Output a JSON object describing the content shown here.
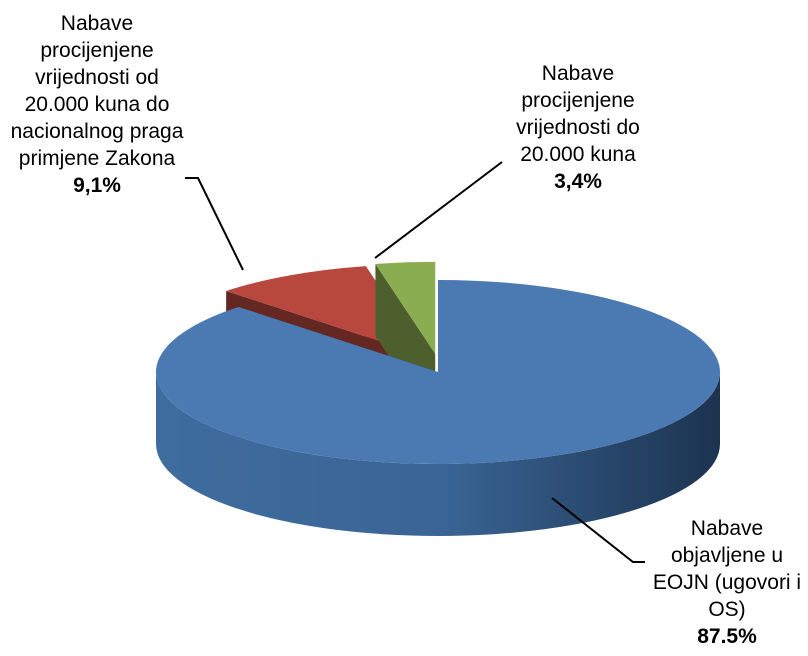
{
  "chart_data": {
    "type": "pie3d",
    "categories": [
      "Nabave objavljene u EOJN (ugovori i OS)",
      "Nabave procijenjene vrijednosti od 20.000  kuna do nacionalnog praga primjene Zakona",
      "Nabave procijenjene vrijednosti do 20.000 kuna"
    ],
    "values": [
      87.5,
      9.1,
      3.4
    ],
    "value_labels": [
      "87.5%",
      "9,1%",
      "3,4%"
    ],
    "colors": [
      "#4a7ab1",
      "#b8473d",
      "#8bad52"
    ]
  }
}
